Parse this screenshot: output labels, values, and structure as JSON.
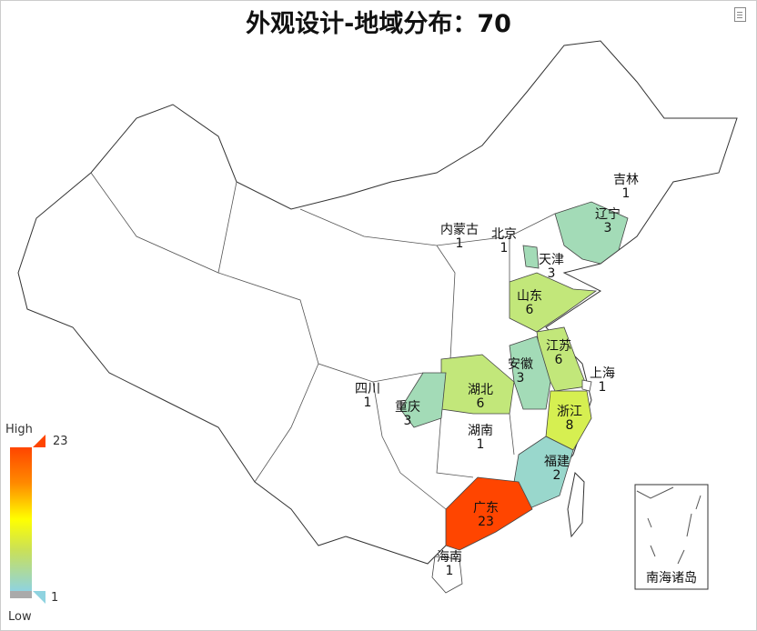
{
  "title": "外观设计-地域分布：70",
  "toolbar": {
    "icon": "data-view-icon"
  },
  "legend": {
    "high_label": "High",
    "low_label": "Low",
    "max": 23,
    "min": 1,
    "max_text": "23",
    "min_text": "1",
    "colors": {
      "low": "#8fd3e0",
      "mid": "#ffff00",
      "high": "#ff4500",
      "zero": "#ffffff"
    }
  },
  "inset_label": "南海诸岛",
  "regions": [
    {
      "name": "吉林",
      "value": 1
    },
    {
      "name": "辽宁",
      "value": 3
    },
    {
      "name": "内蒙古",
      "value": 1
    },
    {
      "name": "北京",
      "value": 1
    },
    {
      "name": "天津",
      "value": 3
    },
    {
      "name": "山东",
      "value": 6
    },
    {
      "name": "江苏",
      "value": 6
    },
    {
      "name": "上海",
      "value": 1
    },
    {
      "name": "安徽",
      "value": 3
    },
    {
      "name": "浙江",
      "value": 8
    },
    {
      "name": "湖北",
      "value": 6
    },
    {
      "name": "重庆",
      "value": 3
    },
    {
      "name": "四川",
      "value": 1
    },
    {
      "name": "湖南",
      "value": 1
    },
    {
      "name": "福建",
      "value": 2
    },
    {
      "name": "广东",
      "value": 23
    },
    {
      "name": "海南",
      "value": 1
    }
  ]
}
